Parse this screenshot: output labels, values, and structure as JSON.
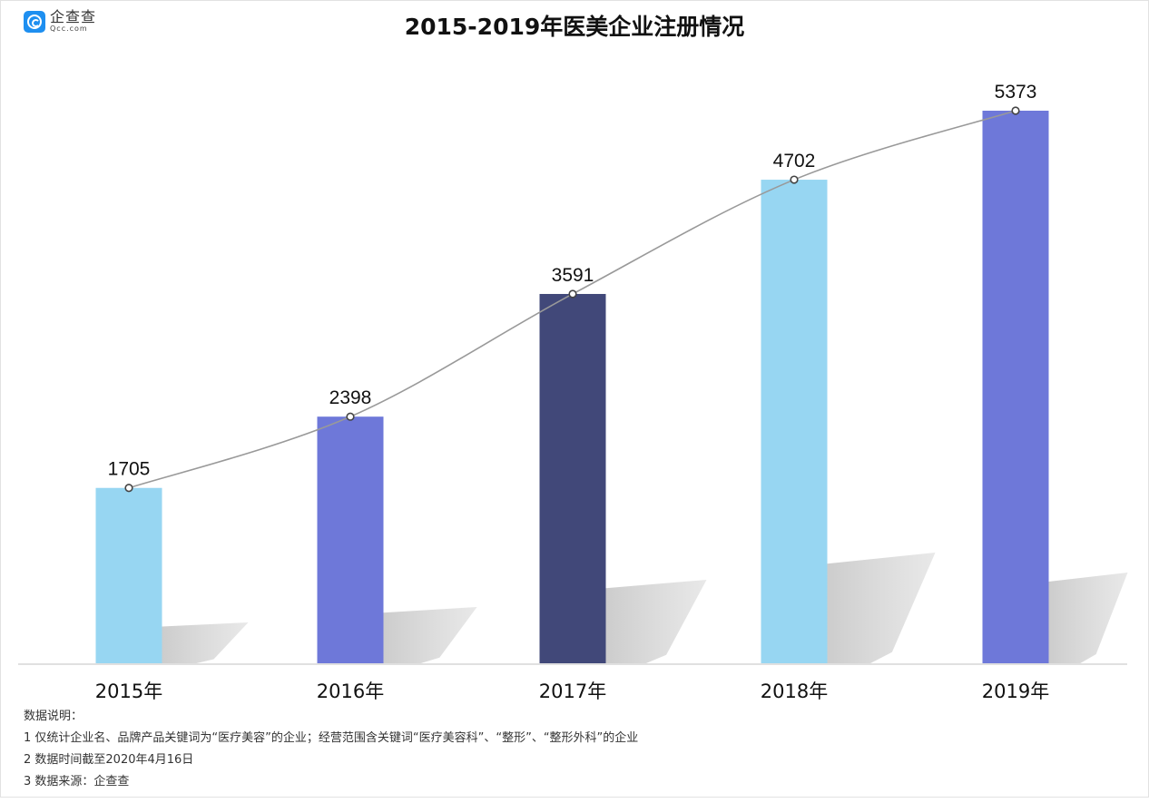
{
  "logo": {
    "name": "企查查",
    "domain": "Qcc.com"
  },
  "title": "2015-2019年医美企业注册情况",
  "chart_data": {
    "type": "bar",
    "title": "2015-2019年医美企业注册情况",
    "categories": [
      "2015年",
      "2016年",
      "2017年",
      "2018年",
      "2019年"
    ],
    "values": [
      1705,
      2398,
      3591,
      4702,
      5373
    ],
    "bar_colors": [
      "#97d6f2",
      "#6e78d9",
      "#414879",
      "#97d6f2",
      "#6e78d9"
    ],
    "overlay_line": {
      "type": "line",
      "values": [
        1705,
        2398,
        3591,
        4702,
        5373
      ],
      "color": "#999999",
      "smooth": true,
      "markers": "hollow-circle"
    },
    "data_labels": true,
    "xlabel": "",
    "ylabel": "",
    "y_axis_visible": false,
    "grid": false,
    "legend": null
  },
  "notes": {
    "heading": "数据说明：",
    "lines": [
      "1 仅统计企业名、品牌产品关键词为“医疗美容”的企业；经营范围含关键词“医疗美容科”、“整形”、“整形外科”的企业",
      "2 数据时间截至2020年4月16日",
      "3 数据来源：企查查"
    ]
  }
}
